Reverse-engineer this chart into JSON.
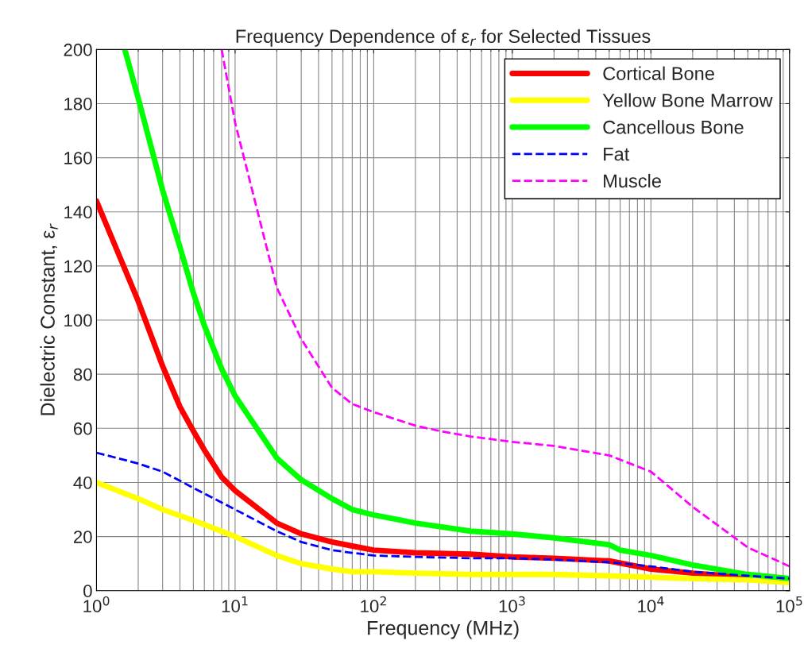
{
  "chart_data": {
    "type": "line",
    "title": "Frequency Dependence of ε$_{r}$ for Selected Tissues",
    "xlabel": "Frequency (MHz)",
    "ylabel": "Dielectric Constant, ε$_{r}$",
    "log": "x",
    "xlim": [
      1,
      100000
    ],
    "ylim": [
      0,
      200
    ],
    "xticks": [
      {
        "value": 1,
        "label": "10$^{0}$"
      },
      {
        "value": 10,
        "label": "10$^{1}$"
      },
      {
        "value": 100,
        "label": "10$^{2}$"
      },
      {
        "value": 1000,
        "label": "10$^{3}$"
      },
      {
        "value": 10000,
        "label": "10$^{4}$"
      },
      {
        "value": 100000,
        "label": "10$^{5}$"
      }
    ],
    "yticks": [
      0,
      20,
      40,
      60,
      80,
      100,
      120,
      140,
      160,
      180,
      200
    ],
    "grid": true,
    "legend": "top right",
    "series": [
      {
        "name": "Cortical Bone",
        "color": "#ff0000",
        "line_style": "solid",
        "x": [
          1,
          2,
          3,
          4,
          5,
          6,
          8,
          10,
          20,
          30,
          50,
          70,
          100,
          200,
          500,
          1000,
          2000,
          5000,
          10000,
          20000,
          50000
        ],
        "values": [
          144,
          107,
          83,
          68,
          59,
          52,
          42,
          37,
          25,
          21,
          18,
          16.5,
          15,
          14,
          13.5,
          12.5,
          12,
          11,
          8,
          6.5,
          5
        ]
      },
      {
        "name": "Yellow Bone Marrow",
        "color": "#ffff00",
        "line_style": "solid",
        "x": [
          1,
          2,
          3,
          5,
          10,
          20,
          30,
          50,
          70,
          100,
          200,
          500,
          1000,
          2000,
          5000,
          10000,
          20000,
          50000,
          100000
        ],
        "values": [
          40,
          34,
          30,
          26,
          20,
          13,
          10,
          8,
          7,
          7,
          6.5,
          6,
          6,
          6,
          5.5,
          5,
          4.5,
          4,
          3
        ]
      },
      {
        "name": "Cancellous Bone",
        "color": "#00ff00",
        "line_style": "solid",
        "x": [
          1.6,
          2,
          3,
          4,
          5,
          6,
          8,
          10,
          20,
          30,
          50,
          70,
          100,
          200,
          500,
          1000,
          2000,
          5000,
          6000,
          10000,
          20000,
          50000,
          100000
        ],
        "values": [
          200,
          182,
          148,
          127,
          110,
          98,
          82,
          72,
          49,
          41,
          34,
          30,
          28,
          25,
          22,
          21,
          19.5,
          17,
          15,
          13,
          9.5,
          6,
          4.5
        ]
      },
      {
        "name": "Fat",
        "color": "#0000ff",
        "line_style": "dashed",
        "x": [
          1,
          2,
          3,
          5,
          10,
          20,
          30,
          50,
          70,
          100,
          200,
          500,
          1000,
          2000,
          5000,
          10000,
          20000,
          50000,
          100000
        ],
        "values": [
          51,
          47,
          44,
          38,
          30,
          22,
          18,
          15,
          14,
          13,
          12.5,
          12,
          12,
          11.5,
          10.5,
          9,
          7,
          5.5,
          4.5
        ]
      },
      {
        "name": "Muscle",
        "color": "#ff00ff",
        "line_style": "dashed",
        "x": [
          8,
          10,
          20,
          30,
          50,
          70,
          100,
          200,
          300,
          500,
          1000,
          2000,
          5000,
          10000,
          20000,
          50000,
          100000
        ],
        "values": [
          200,
          173,
          112,
          93,
          75,
          69,
          66,
          61,
          59,
          57,
          55,
          53.5,
          50,
          44,
          31,
          16,
          9
        ]
      }
    ]
  }
}
